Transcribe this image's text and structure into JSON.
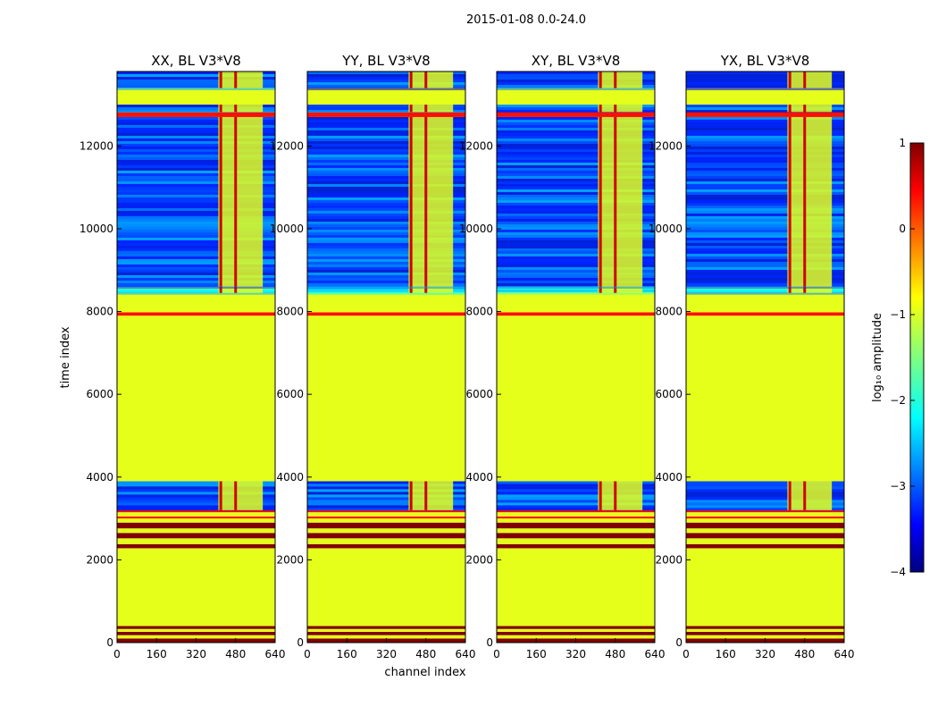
{
  "suptitle": "2015-01-08 0.0-24.0",
  "xlabel": "channel index",
  "ylabel": "time index",
  "colors": {
    "background": "#ffffff",
    "axes": "#000000"
  },
  "chart_data": {
    "type": "heatmap",
    "title": "2015-01-08 0.0-24.0",
    "xlabel": "channel index",
    "ylabel": "time index",
    "xlim": [
      0,
      640
    ],
    "ylim": [
      0,
      13800
    ],
    "xticks": [
      0,
      160,
      320,
      480,
      640
    ],
    "yticks": [
      0,
      2000,
      4000,
      6000,
      8000,
      10000,
      12000
    ],
    "panels": [
      {
        "title": "XX, BL V3*V8",
        "rfi_columns": [
          420,
          480
        ]
      },
      {
        "title": "YY, BL V3*V8",
        "rfi_columns": [
          420,
          480
        ]
      },
      {
        "title": "XY, BL V3*V8",
        "rfi_columns": [
          420,
          480
        ]
      },
      {
        "title": "YX, BL V3*V8",
        "rfi_columns": [
          420,
          480
        ]
      }
    ],
    "flagged_band_channels": [
      410,
      590
    ],
    "regions": [
      {
        "t0": 0,
        "t1": 100,
        "value": 1.0
      },
      {
        "t0": 100,
        "t1": 180,
        "value": -1.0
      },
      {
        "t0": 180,
        "t1": 260,
        "value": 1.0
      },
      {
        "t0": 260,
        "t1": 330,
        "value": -1.0
      },
      {
        "t0": 330,
        "t1": 400,
        "value": 1.0
      },
      {
        "t0": 400,
        "t1": 2280,
        "value": -1.0
      },
      {
        "t0": 2280,
        "t1": 2380,
        "value": 1.0
      },
      {
        "t0": 2380,
        "t1": 2520,
        "value": -1.0
      },
      {
        "t0": 2520,
        "t1": 2650,
        "value": 1.0
      },
      {
        "t0": 2650,
        "t1": 2760,
        "value": -1.0
      },
      {
        "t0": 2760,
        "t1": 2900,
        "value": 1.0
      },
      {
        "t0": 2900,
        "t1": 3000,
        "value": -1.0
      },
      {
        "t0": 3000,
        "t1": 3050,
        "value": 0.3
      },
      {
        "t0": 3050,
        "t1": 3150,
        "value": -1.0
      },
      {
        "t0": 3150,
        "t1": 3200,
        "value": 0.3
      },
      {
        "t0": 3200,
        "t1": 3900,
        "value": -3.0,
        "noisy": true
      },
      {
        "t0": 3900,
        "t1": 7900,
        "value": -1.0
      },
      {
        "t0": 7900,
        "t1": 7980,
        "value": 0.3
      },
      {
        "t0": 7980,
        "t1": 8450,
        "value": -1.0
      },
      {
        "t0": 8450,
        "t1": 8600,
        "value": -2.0,
        "noisy": true
      },
      {
        "t0": 8600,
        "t1": 12700,
        "value": -3.0,
        "noisy": true
      },
      {
        "t0": 12700,
        "t1": 12820,
        "value": 0.3
      },
      {
        "t0": 12820,
        "t1": 13000,
        "value": -3.0,
        "noisy": true
      },
      {
        "t0": 13000,
        "t1": 13400,
        "value": -1.0
      },
      {
        "t0": 13400,
        "t1": 13800,
        "value": -3.0,
        "noisy": true
      }
    ],
    "colorbar": {
      "label": "log₁₀ amplitude",
      "range": [
        -4,
        1
      ],
      "ticks": [
        "1",
        "0",
        "−1",
        "−2",
        "−3",
        "−4"
      ],
      "colormap": "jet"
    }
  }
}
